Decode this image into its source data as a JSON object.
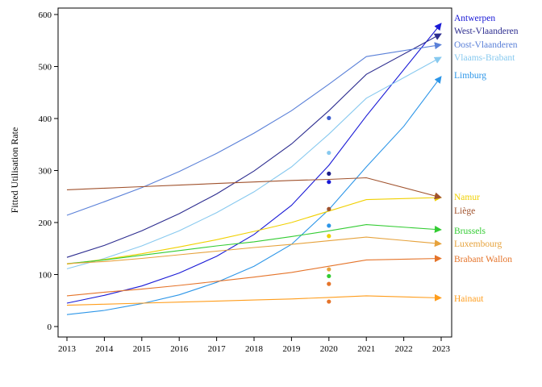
{
  "chart_data": {
    "type": "line",
    "title": "",
    "xlabel": "",
    "ylabel": "Fitted Utilisation Rate",
    "xlim": [
      2013,
      2023
    ],
    "ylim": [
      0,
      600
    ],
    "grid": false,
    "x": [
      2013,
      2014,
      2015,
      2016,
      2017,
      2018,
      2019,
      2020,
      2021,
      2022,
      2023
    ],
    "x_tick_labels": [
      "2013",
      "2014",
      "2015",
      "2016",
      "2017",
      "2018",
      "2019",
      "2020",
      "2021",
      "2022",
      "2023"
    ],
    "y_ticks": [
      0,
      100,
      200,
      300,
      400,
      500,
      600
    ],
    "y_tick_labels": [
      "0",
      "100",
      "200",
      "300",
      "400",
      "500",
      "600"
    ],
    "series": [
      {
        "name": "Antwerpen",
        "color": "#1a1ad6",
        "x": [
          2013,
          2014,
          2015,
          2016,
          2017,
          2018,
          2019,
          2020,
          2021,
          2023
        ],
        "values": [
          45,
          60,
          78,
          103,
          135,
          177,
          233,
          310,
          405,
          583
        ]
      },
      {
        "name": "West-Vlaanderen",
        "color": "#2c2c8f",
        "x": [
          2013,
          2014,
          2015,
          2016,
          2017,
          2018,
          2019,
          2020,
          2021,
          2023
        ],
        "values": [
          133,
          156,
          184,
          217,
          255,
          299,
          351,
          415,
          485,
          563
        ]
      },
      {
        "name": "Oost-Vlaanderen",
        "color": "#5a80d8",
        "x": [
          2013,
          2014,
          2015,
          2016,
          2017,
          2018,
          2019,
          2020,
          2021,
          2023
        ],
        "values": [
          214,
          240,
          267,
          298,
          333,
          372,
          415,
          466,
          519,
          542
        ]
      },
      {
        "name": "Vlaams-Brabant",
        "color": "#87c9ef",
        "x": [
          2013,
          2014,
          2015,
          2016,
          2017,
          2018,
          2019,
          2020,
          2021,
          2023
        ],
        "values": [
          111,
          131,
          155,
          184,
          219,
          259,
          307,
          370,
          439,
          518
        ]
      },
      {
        "name": "Limburg",
        "color": "#2d96e8",
        "x": [
          2013,
          2014,
          2015,
          2016,
          2017,
          2018,
          2019,
          2020,
          2021,
          2022,
          2023
        ],
        "values": [
          23,
          31,
          44,
          61,
          85,
          116,
          158,
          225,
          307,
          385,
          481
        ]
      },
      {
        "name": "Namur",
        "color": "#f0d000",
        "x": [
          2013,
          2014,
          2015,
          2016,
          2017,
          2018,
          2019,
          2020,
          2021,
          2023
        ],
        "values": [
          120,
          129,
          140,
          153,
          167,
          183,
          200,
          222,
          244,
          248
        ]
      },
      {
        "name": "Liège",
        "color": "#a0522d",
        "x": [
          2013,
          2014,
          2015,
          2016,
          2017,
          2018,
          2019,
          2020,
          2021,
          2023
        ],
        "values": [
          263,
          266,
          269,
          272,
          275,
          278,
          281,
          283,
          286,
          248
        ]
      },
      {
        "name": "Brussels",
        "color": "#33cc33",
        "x": [
          2013,
          2014,
          2015,
          2016,
          2017,
          2018,
          2019,
          2020,
          2021,
          2023
        ],
        "values": [
          121,
          128,
          137,
          146,
          155,
          163,
          173,
          184,
          196,
          186
        ]
      },
      {
        "name": "Luxembourg",
        "color": "#e6a23c",
        "x": [
          2013,
          2014,
          2015,
          2016,
          2017,
          2018,
          2019,
          2020,
          2021,
          2023
        ],
        "values": [
          121,
          125,
          131,
          138,
          145,
          152,
          158,
          165,
          172,
          159
        ]
      },
      {
        "name": "Brabant Wallon",
        "color": "#e5742a",
        "x": [
          2013,
          2014,
          2015,
          2016,
          2017,
          2018,
          2019,
          2020,
          2021,
          2023
        ],
        "values": [
          59,
          66,
          72,
          79,
          87,
          95,
          104,
          116,
          128,
          131
        ]
      },
      {
        "name": "Hainaut",
        "color": "#ff9d1c",
        "x": [
          2013,
          2014,
          2015,
          2016,
          2017,
          2018,
          2019,
          2020,
          2021,
          2023
        ],
        "values": [
          41,
          43,
          45,
          47,
          49,
          51,
          53,
          56,
          59,
          55
        ]
      }
    ],
    "points_2020": [
      {
        "series": "Oost-Vlaanderen",
        "x": 2020,
        "y": 401,
        "color": "#3f5fd0"
      },
      {
        "series": "Vlaams-Brabant",
        "x": 2020,
        "y": 334,
        "color": "#87c9ef"
      },
      {
        "series": "West-Vlaanderen",
        "x": 2020,
        "y": 294,
        "color": "#1c1c88"
      },
      {
        "series": "Antwerpen",
        "x": 2020,
        "y": 278,
        "color": "#1a1ad6"
      },
      {
        "series": "Liège",
        "x": 2020,
        "y": 226,
        "color": "#a0522d"
      },
      {
        "series": "Limburg",
        "x": 2020,
        "y": 194,
        "color": "#2d96e8"
      },
      {
        "series": "Namur",
        "x": 2020,
        "y": 174,
        "color": "#f0d000"
      },
      {
        "series": "Luxembourg",
        "x": 2020,
        "y": 110,
        "color": "#e6a23c"
      },
      {
        "series": "Brussels",
        "x": 2020,
        "y": 97,
        "color": "#33cc33"
      },
      {
        "series": "Brabant Wallon",
        "x": 2020,
        "y": 82,
        "color": "#e5742a"
      },
      {
        "series": "Hainaut",
        "x": 2020,
        "y": 48,
        "color": "#e5742a"
      }
    ]
  }
}
